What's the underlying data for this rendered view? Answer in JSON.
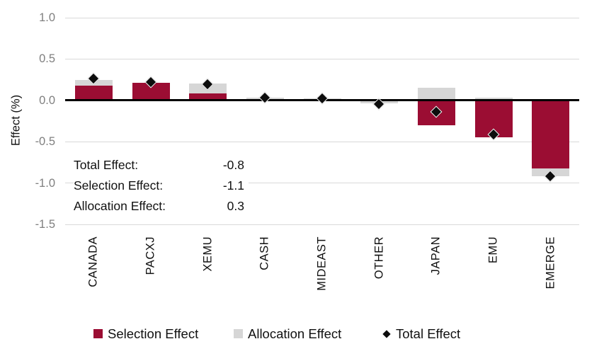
{
  "chart_data": {
    "type": "bar",
    "stacked": true,
    "title": "",
    "xlabel": "",
    "ylabel": "Effect (%)",
    "ylim": [
      -1.5,
      1.0
    ],
    "ytick_values": [
      1.0,
      0.5,
      0.0,
      -0.5,
      -1.0,
      -1.5
    ],
    "ytick_labels": [
      "1.0",
      "0.5",
      "0.0",
      "-0.5",
      "-1.0",
      "-1.5"
    ],
    "grid": true,
    "legend_position": "bottom",
    "categories": [
      "CANADA",
      "PACXJ",
      "XEMU",
      "CASH",
      "MIDEAST",
      "OTHER",
      "JAPAN",
      "EMU",
      "EMERGE"
    ],
    "series": [
      {
        "name": "Selection Effect",
        "render": "bar",
        "color": "#9B0D33",
        "values": [
          0.18,
          0.21,
          0.08,
          0.0,
          0.0,
          0.0,
          -0.3,
          -0.45,
          -0.82
        ]
      },
      {
        "name": "Allocation Effect",
        "render": "bar",
        "color": "#D6D6D6",
        "values": [
          0.07,
          0.0,
          0.12,
          0.03,
          0.02,
          -0.04,
          0.15,
          0.03,
          -0.1
        ]
      },
      {
        "name": "Total Effect",
        "render": "diamond",
        "color": "#0D0D0D",
        "values": [
          0.26,
          0.22,
          0.19,
          0.03,
          0.02,
          -0.05,
          -0.14,
          -0.42,
          -0.92
        ]
      }
    ]
  },
  "annotation": {
    "rows": [
      {
        "label": "Total Effect:",
        "value": "-0.8"
      },
      {
        "label": "Selection Effect:",
        "value": "-1.1"
      },
      {
        "label": "Allocation Effect:",
        "value": "0.3"
      }
    ]
  },
  "colors": {
    "selection": "#9B0D33",
    "allocation": "#D6D6D6",
    "total_marker": "#0D0D0D",
    "gridline": "#D9D9D9",
    "zero_line": "#000000",
    "tick_label": "#7F7F7F",
    "text": "#111111"
  }
}
